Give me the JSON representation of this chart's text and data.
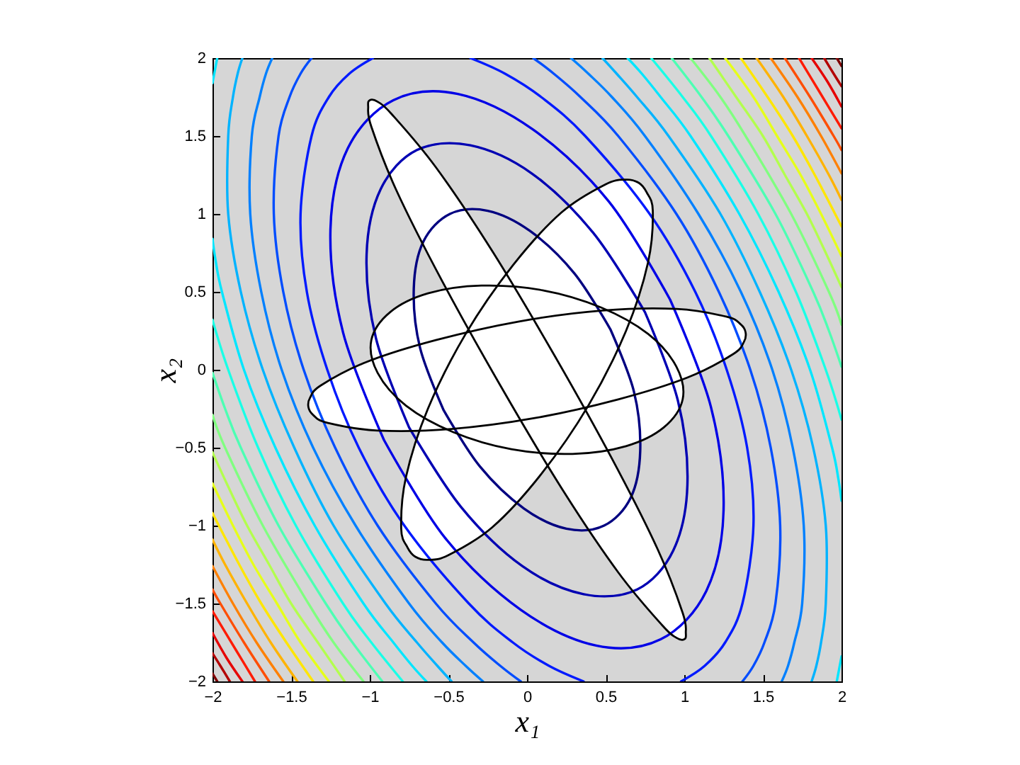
{
  "chart_data": {
    "type": "line",
    "xlabel": "x₁",
    "ylabel": "x₂",
    "xlim": [
      -2,
      2
    ],
    "ylim": [
      -2,
      2
    ],
    "xticks": [
      -2,
      -1.5,
      -1,
      -0.5,
      0,
      0.5,
      1,
      1.5,
      2
    ],
    "yticks": [
      -2,
      -1.5,
      -1,
      -0.5,
      0,
      0.5,
      1,
      1.5,
      2
    ],
    "series": [
      {
        "type": "area",
        "color": "#ffffff",
        "x": [
          1,
          1.01,
          0.99,
          0.83,
          0.54,
          0.17,
          -0.22,
          -0.58,
          -0.86,
          -0.95,
          -1,
          -1.01,
          -0.99,
          -0.83,
          -0.54,
          -0.17,
          0.22,
          0.58,
          0.86,
          0.95
        ],
        "values": [
          -1.73,
          -1.69,
          -1.56,
          -1.15,
          -0.57,
          0.1,
          0.76,
          1.3,
          1.64,
          1.72,
          1.73,
          1.69,
          1.56,
          1.15,
          0.57,
          -0.1,
          -0.76,
          -1.3,
          -1.64,
          -1.72
        ]
      },
      {
        "type": "area",
        "color": "#ffffff",
        "x": [
          0.71,
          0.63,
          0.5,
          0.22,
          -0.09,
          -0.39,
          -0.63,
          -0.77,
          -0.8,
          -0.76,
          -0.71,
          -0.63,
          -0.5,
          -0.22,
          0.09,
          0.39,
          0.63,
          0.77,
          0.8,
          0.76
        ],
        "values": [
          1.2,
          1.22,
          1.19,
          1.01,
          0.67,
          0.23,
          -0.25,
          -0.69,
          -1.02,
          -1.14,
          -1.2,
          -1.22,
          -1.19,
          -1.01,
          -0.67,
          -0.23,
          0.25,
          0.69,
          1.02,
          1.14
        ]
      },
      {
        "type": "area",
        "color": "#ffffff",
        "x": [
          1.39,
          1.36,
          1.27,
          0.95,
          0.48,
          -0.05,
          -0.58,
          -1.02,
          -1.31,
          -1.38,
          -1.39,
          -1.36,
          -1.27,
          -0.95,
          -0.48,
          0.05,
          0.58,
          1.02,
          1.31,
          1.38
        ],
        "values": [
          0.24,
          0.29,
          0.34,
          0.39,
          0.38,
          0.31,
          0.19,
          0.05,
          -0.1,
          -0.18,
          -0.24,
          -0.29,
          -0.34,
          -0.39,
          -0.38,
          -0.31,
          -0.19,
          -0.05,
          0.1,
          0.18
        ]
      },
      {
        "type": "area",
        "color": "#ffffff",
        "x": [
          0.99,
          0.95,
          0.77,
          0.47,
          0.1,
          -0.29,
          -0.63,
          -0.87,
          -0.99,
          -0.95,
          -0.77,
          -0.47,
          -0.1,
          0.29,
          0.63,
          0.87
        ],
        "values": [
          -0.19,
          0.02,
          0.23,
          0.4,
          0.51,
          0.54,
          0.49,
          0.37,
          0.19,
          -0.02,
          -0.23,
          -0.4,
          -0.51,
          -0.54,
          -0.49,
          -0.37
        ]
      },
      {
        "color": "#000080",
        "x": [
          0.53,
          0.3,
          0.02,
          -0.25,
          -0.49,
          -0.66,
          -0.72,
          -0.68,
          -0.53,
          null,
          -0.53,
          -0.3,
          -0.02,
          0.25,
          0.49,
          0.66,
          0.72,
          0.68,
          0.53
        ],
        "values": [
          0.26,
          0.62,
          0.89,
          1.02,
          1,
          0.82,
          0.52,
          0.14,
          -0.26,
          null,
          -0.26,
          -0.62,
          -0.89,
          -1.02,
          -1,
          -0.82,
          -0.52,
          -0.14,
          0.26
        ]
      },
      {
        "color": "#0000b3",
        "x": [
          0.75,
          0.42,
          0.03,
          -0.36,
          -0.7,
          -0.93,
          -1.02,
          -0.96,
          -0.75,
          null,
          -0.75,
          -0.42,
          -0.03,
          0.36,
          0.7,
          0.93,
          1.02,
          0.96,
          0.75
        ],
        "values": [
          0.37,
          0.88,
          1.26,
          1.44,
          1.41,
          1.16,
          0.74,
          0.2,
          -0.37,
          null,
          -0.37,
          -0.88,
          -1.26,
          -1.44,
          -1.41,
          -1.16,
          -0.74,
          -0.2,
          0.37
        ]
      },
      {
        "color": "#0000e6",
        "x": [
          0.91,
          0.52,
          0.04,
          -0.44,
          -0.85,
          -1.14,
          -1.25,
          -1.17,
          -0.91,
          null,
          -0.91,
          -0.52,
          -0.04,
          0.44,
          0.85,
          1.14,
          1.25,
          1.17,
          0.91
        ],
        "values": [
          0.45,
          1.08,
          1.54,
          1.77,
          1.73,
          1.42,
          0.9,
          0.24,
          -0.45,
          null,
          -0.45,
          -1.08,
          -1.54,
          -1.77,
          -1.73,
          -1.42,
          -0.9,
          -0.24,
          0.45
        ]
      },
      {
        "color": "#001aff",
        "x": [
          -0.36,
          -0.14,
          0.09,
          0.37,
          0.78,
          1.07,
          1.27,
          1.4,
          1.44,
          1.37,
          1.26,
          1.13,
          0.98,
          null,
          0.36,
          0.14,
          -0.09,
          -0.37,
          -0.78,
          -1.07,
          -1.27,
          -1.4,
          -1.44,
          -1.37,
          -1.26,
          -1.13,
          -0.98
        ],
        "values": [
          2,
          1.9,
          1.75,
          1.5,
          1,
          0.5,
          0,
          -0.5,
          -1,
          -1.5,
          -1.75,
          -1.9,
          -2,
          null,
          -2,
          -1.9,
          -1.75,
          -1.5,
          -1,
          -0.5,
          0,
          0.5,
          1,
          1.5,
          1.75,
          1.9,
          2
        ]
      },
      {
        "color": "#004dff",
        "x": [
          0.04,
          0.17,
          0.34,
          0.58,
          0.95,
          1.22,
          1.42,
          1.55,
          1.61,
          1.58,
          1.51,
          1.44,
          1.37,
          null,
          -0.04,
          -0.17,
          -0.34,
          -0.58,
          -0.95,
          -1.22,
          -1.42,
          -1.55,
          -1.61,
          -1.58,
          -1.51,
          -1.44,
          -1.37
        ],
        "values": [
          2,
          1.9,
          1.75,
          1.5,
          1,
          0.5,
          0,
          -0.5,
          -1,
          -1.5,
          -1.75,
          -1.9,
          -2,
          null,
          -2,
          -1.9,
          -1.75,
          -1.5,
          -1,
          -0.5,
          0,
          0.5,
          1,
          1.5,
          1.75,
          1.9,
          2
        ]
      },
      {
        "color": "#0080ff",
        "x": [
          0.28,
          0.39,
          0.54,
          0.75,
          1.09,
          1.36,
          1.56,
          1.69,
          1.76,
          1.75,
          1.7,
          1.66,
          1.62,
          null,
          -0.28,
          -0.39,
          -0.54,
          -0.75,
          -1.09,
          -1.36,
          -1.56,
          -1.69,
          -1.76,
          -1.75,
          -1.7,
          -1.66,
          -1.62
        ],
        "values": [
          2,
          1.9,
          1.75,
          1.5,
          1,
          0.5,
          0,
          -0.5,
          -1,
          -1.5,
          -1.75,
          -1.9,
          -2,
          null,
          -2,
          -1.9,
          -1.75,
          -1.5,
          -1,
          -0.5,
          0,
          0.5,
          1,
          1.5,
          1.75,
          1.9,
          2
        ]
      },
      {
        "color": "#00b3ff",
        "x": [
          0.48,
          0.57,
          0.7,
          0.9,
          1.23,
          1.48,
          1.68,
          1.82,
          1.9,
          1.9,
          1.87,
          1.84,
          1.81,
          null,
          -0.48,
          -0.57,
          -0.7,
          -0.9,
          -1.23,
          -1.48,
          -1.68,
          -1.82,
          -1.9,
          -1.9,
          -1.87,
          -1.84,
          -1.81
        ],
        "values": [
          2,
          1.9,
          1.75,
          1.5,
          1,
          0.5,
          0,
          -0.5,
          -1,
          -1.5,
          -1.75,
          -1.9,
          -2,
          null,
          -2,
          -1.9,
          -1.75,
          -1.5,
          -1,
          -0.5,
          0,
          0.5,
          1,
          1.5,
          1.75,
          1.9,
          2
        ]
      },
      {
        "color": "#00e6ff",
        "x": [
          0.64,
          0.73,
          0.85,
          1.04,
          1.35,
          1.6,
          1.8,
          1.94,
          1.98,
          2,
          null,
          2,
          1.97,
          null,
          -0.64,
          -0.73,
          -0.85,
          -1.04,
          -1.35,
          -1.6,
          -1.8,
          -1.94,
          -1.98,
          -2,
          null,
          -2,
          -1.97
        ],
        "values": [
          2,
          1.9,
          1.75,
          1.5,
          1,
          0.5,
          0,
          -0.5,
          -0.7,
          -0.84,
          null,
          -1.84,
          -2,
          null,
          -2,
          -1.9,
          -1.75,
          -1.5,
          -1,
          -0.5,
          0,
          0.5,
          0.7,
          0.84,
          null,
          1.84,
          2
        ]
      },
      {
        "color": "#1affe6",
        "x": [
          0.79,
          0.99,
          1.17,
          1.47,
          1.71,
          1.9,
          2,
          null,
          -0.79,
          -0.99,
          -1.17,
          -1.47,
          -1.71,
          -1.9,
          -2
        ],
        "values": [
          2,
          1.75,
          1.5,
          1,
          0.5,
          0,
          -0.32,
          null,
          -2,
          -1.75,
          -1.5,
          -1,
          -0.5,
          0,
          0.32
        ]
      },
      {
        "color": "#4dffb3",
        "x": [
          0.92,
          1.11,
          1.28,
          1.58,
          1.82,
          1.92,
          2,
          null,
          -0.92,
          -1.11,
          -1.28,
          -1.58,
          -1.82,
          -1.92,
          -2
        ],
        "values": [
          2,
          1.75,
          1.5,
          1,
          0.5,
          0.25,
          0.02,
          null,
          -2,
          -1.75,
          -1.5,
          -1,
          -0.5,
          -0.25,
          -0.02
        ]
      },
      {
        "color": "#80ff80",
        "x": [
          1.04,
          1.23,
          1.39,
          1.68,
          1.92,
          2,
          null,
          -1.04,
          -1.23,
          -1.39,
          -1.68,
          -1.92,
          -2
        ],
        "values": [
          2,
          1.75,
          1.5,
          1,
          0.5,
          0.29,
          null,
          -2,
          -1.75,
          -1.5,
          -1,
          -0.5,
          -0.29
        ]
      },
      {
        "color": "#b3ff4d",
        "x": [
          1.16,
          1.33,
          1.5,
          1.64,
          1.78,
          1.9,
          2,
          null,
          -1.16,
          -1.33,
          -1.5,
          -1.64,
          -1.78,
          -1.9,
          -2
        ],
        "values": [
          2,
          1.75,
          1.5,
          1.25,
          1,
          0.75,
          0.53,
          null,
          -2,
          -1.75,
          -1.5,
          -1.25,
          -1,
          -0.75,
          -0.53
        ]
      },
      {
        "color": "#e6ff1a",
        "x": [
          1.26,
          1.44,
          1.59,
          1.74,
          1.87,
          2,
          null,
          -1.26,
          -1.44,
          -1.59,
          -1.74,
          -1.87,
          -2
        ],
        "values": [
          2,
          1.75,
          1.5,
          1.25,
          1,
          0.73,
          null,
          -2,
          -1.75,
          -1.5,
          -1.25,
          -1,
          -0.73
        ]
      },
      {
        "color": "#ffe600",
        "x": [
          1.36,
          1.53,
          1.69,
          1.83,
          2,
          null,
          -1.36,
          -1.53,
          -1.69,
          -1.83,
          -2
        ],
        "values": [
          2,
          1.75,
          1.5,
          1.25,
          0.92,
          null,
          -2,
          -1.75,
          -1.5,
          -1.25,
          -0.92
        ]
      },
      {
        "color": "#ffb300",
        "x": [
          1.46,
          1.63,
          1.78,
          1.92,
          2,
          null,
          -1.46,
          -1.63,
          -1.78,
          -1.92,
          -2
        ],
        "values": [
          2,
          1.75,
          1.5,
          1.25,
          1.09,
          null,
          -2,
          -1.75,
          -1.5,
          -1.25,
          -1.09
        ]
      },
      {
        "color": "#ff8000",
        "x": [
          1.55,
          1.72,
          1.87,
          2,
          null,
          -1.55,
          -1.72,
          -1.87,
          -2
        ],
        "values": [
          2,
          1.75,
          1.5,
          1.26,
          null,
          -2,
          -1.75,
          -1.5,
          -1.26
        ]
      },
      {
        "color": "#ff4d00",
        "x": [
          1.64,
          1.8,
          1.95,
          2,
          null,
          -1.64,
          -1.8,
          -1.95,
          -2
        ],
        "values": [
          2,
          1.75,
          1.5,
          1.41,
          null,
          -2,
          -1.75,
          -1.5,
          -1.41
        ]
      },
      {
        "color": "#ff1a00",
        "x": [
          1.73,
          1.85,
          2,
          null,
          -1.73,
          -1.85,
          -2
        ],
        "values": [
          2,
          1.8,
          1.55,
          null,
          -2,
          -1.8,
          -1.55
        ]
      },
      {
        "color": "#e60000",
        "x": [
          1.81,
          1.91,
          2,
          null,
          -1.81,
          -1.91,
          -2
        ],
        "values": [
          2,
          1.85,
          1.69,
          null,
          -2,
          -1.85,
          -1.69
        ]
      },
      {
        "color": "#b30000",
        "x": [
          1.89,
          1.95,
          2,
          null,
          -1.89,
          -1.95,
          -2
        ],
        "values": [
          2,
          1.9,
          1.82,
          null,
          -2,
          -1.9,
          -1.82
        ]
      },
      {
        "color": "#800000",
        "x": [
          1.97,
          2,
          null,
          -1.97,
          -2
        ],
        "values": [
          2,
          1.95,
          null,
          -2,
          -1.95
        ]
      }
    ]
  }
}
